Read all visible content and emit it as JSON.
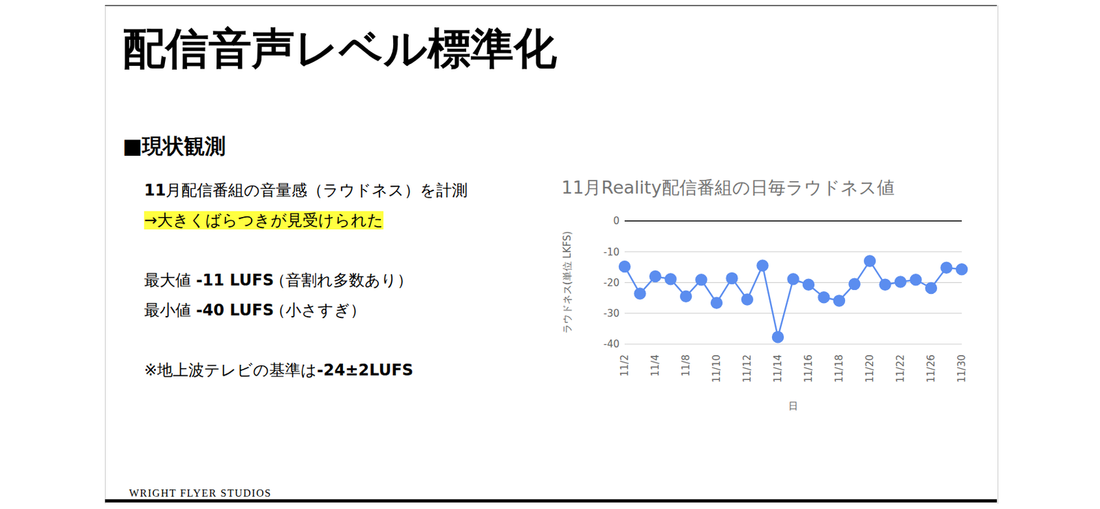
{
  "slide": {
    "title": "配信音声レベル標準化",
    "section": "■現状観測",
    "lines": [
      {
        "segments": [
          {
            "text": "11",
            "bold": true
          },
          {
            "text": "月配信番組の音量感（ラウドネス）を計測",
            "bold": false
          }
        ],
        "highlight": false
      },
      {
        "segments": [
          {
            "text": "→大きくばらつきが見受けられた",
            "bold": false
          }
        ],
        "highlight": true
      },
      {
        "segments": [
          {
            "text": "最大値 ",
            "bold": false
          },
          {
            "text": "-11 LUFS",
            "bold": true
          }
        ],
        "note": "（音割れ多数あり）",
        "highlight": false
      },
      {
        "segments": [
          {
            "text": "最小値 ",
            "bold": false
          },
          {
            "text": "-40 LUFS",
            "bold": true
          }
        ],
        "note": "（小さすぎ）",
        "highlight": false
      },
      {
        "segments": [
          {
            "text": "※地上波テレビの基準は",
            "bold": false
          },
          {
            "text": "-24±2LUFS",
            "bold": true
          }
        ],
        "highlight": false
      }
    ],
    "footer": "WRIGHT FLYER STUDIOS"
  },
  "chart_data": {
    "type": "line",
    "title": "11月Reality配信番組の日毎ラウドネス値",
    "x_label": "日",
    "y_label": "ラウドネス(単位 LKFS)",
    "categories": [
      "11/2",
      null,
      "11/4",
      null,
      "11/8",
      null,
      "11/10",
      null,
      "11/12",
      null,
      "11/14",
      null,
      "11/16",
      null,
      "11/18",
      null,
      "11/20",
      null,
      "11/22",
      null,
      "11/26",
      null,
      "11/30"
    ],
    "values": [
      -14.8,
      -23.6,
      -18,
      -18.9,
      -24.5,
      -19.1,
      -26.6,
      -18.6,
      -25.5,
      -14.5,
      -37.7,
      -18.9,
      -20.7,
      -24.8,
      -25.9,
      -20.5,
      -13,
      -20.7,
      -19.8,
      -19.1,
      -21.8,
      -15.2,
      -15.7
    ],
    "color": "#5b8def",
    "marker": "circle",
    "ylim": [
      -40,
      0
    ],
    "yticks": [
      -40,
      -30,
      -20,
      -10,
      0
    ],
    "grid": true
  }
}
